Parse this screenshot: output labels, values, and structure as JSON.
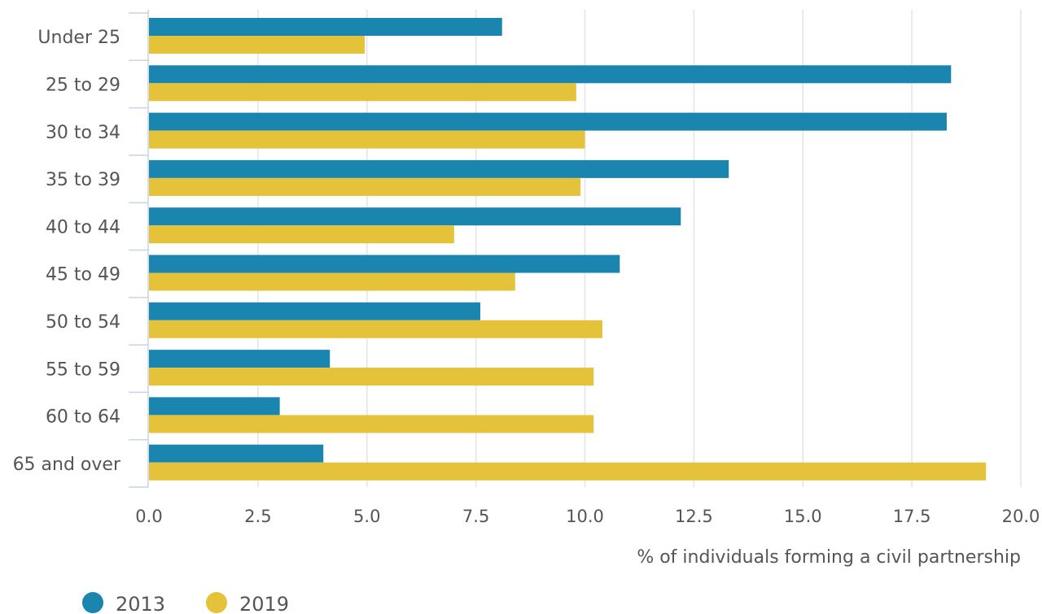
{
  "chart_data": {
    "type": "bar",
    "orientation": "horizontal",
    "categories": [
      "Under 25",
      "25 to 29",
      "30 to 34",
      "35 to 39",
      "40 to 44",
      "45 to 49",
      "50 to 54",
      "55 to 59",
      "60 to 64",
      "65 and over"
    ],
    "series": [
      {
        "name": "2013",
        "color": "#1a86b0",
        "values": [
          8.1,
          18.4,
          18.3,
          13.3,
          12.2,
          10.8,
          7.6,
          4.15,
          3.0,
          4.0
        ]
      },
      {
        "name": "2019",
        "color": "#e4c23a",
        "values": [
          4.95,
          9.8,
          10.0,
          9.9,
          7.0,
          8.4,
          10.4,
          10.2,
          10.2,
          19.2
        ]
      }
    ],
    "xlabel": "% of individuals forming a civil partnership",
    "xlim": [
      0,
      20
    ],
    "xticks": [
      "0.0",
      "2.5",
      "5.0",
      "7.5",
      "10.0",
      "12.5",
      "15.0",
      "17.5",
      "20.0"
    ],
    "grid": "vertical",
    "legend_position": "bottom-left"
  }
}
